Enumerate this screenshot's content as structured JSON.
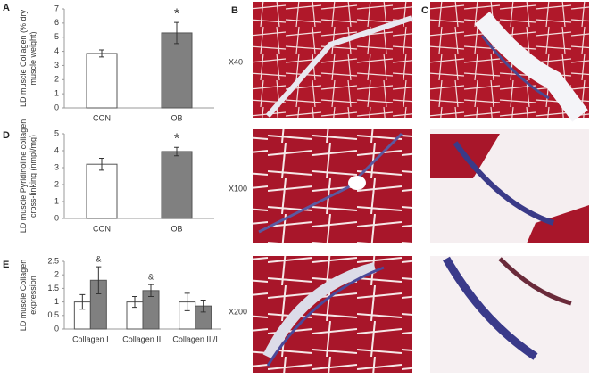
{
  "panels": {
    "a": "A",
    "b": "B",
    "c": "C",
    "d": "D",
    "e": "E"
  },
  "magnifications": [
    "X40",
    "X100",
    "X200"
  ],
  "chart_data": [
    {
      "type": "bar",
      "ylabel": [
        "LD muscle Collagen (% dry",
        "muscle weight)"
      ],
      "categories": [
        "CON",
        "OB"
      ],
      "series": [
        {
          "colors": [
            "#ffffff",
            "#808080"
          ],
          "values": [
            3.85,
            5.3
          ],
          "errors": [
            0.25,
            0.75
          ],
          "annotations": [
            null,
            "*"
          ]
        }
      ],
      "ylim": [
        0,
        7
      ],
      "yticks": [
        0,
        1,
        2,
        3,
        4,
        5,
        6,
        7
      ]
    },
    {
      "type": "bar",
      "ylabel": [
        "LD muscle Pyridinoline collagen",
        "cross-linking (nmpl/mg)"
      ],
      "categories": [
        "CON",
        "OB"
      ],
      "series": [
        {
          "colors": [
            "#ffffff",
            "#808080"
          ],
          "values": [
            3.2,
            3.95
          ],
          "errors": [
            0.35,
            0.25
          ],
          "annotations": [
            null,
            "*"
          ]
        }
      ],
      "ylim": [
        0,
        5
      ],
      "yticks": [
        0,
        1,
        2,
        3,
        4,
        5
      ]
    },
    {
      "type": "bar",
      "ylabel": [
        "LD muscle Collagen",
        "expression"
      ],
      "categories": [
        "Collagen I",
        "Collagen III",
        "Collagen III/I"
      ],
      "series": [
        {
          "color": "#ffffff",
          "values": [
            1.0,
            1.0,
            1.0
          ],
          "errors": [
            0.27,
            0.2,
            0.32
          ],
          "annotations": [
            null,
            null,
            null
          ]
        },
        {
          "color": "#808080",
          "values": [
            1.8,
            1.42,
            0.85
          ],
          "errors": [
            0.5,
            0.22,
            0.22
          ],
          "annotations": [
            "&",
            "&",
            null
          ]
        }
      ],
      "ylim": [
        0,
        2.5
      ],
      "yticks": [
        0,
        0.5,
        1,
        1.5,
        2,
        2.5
      ]
    }
  ]
}
